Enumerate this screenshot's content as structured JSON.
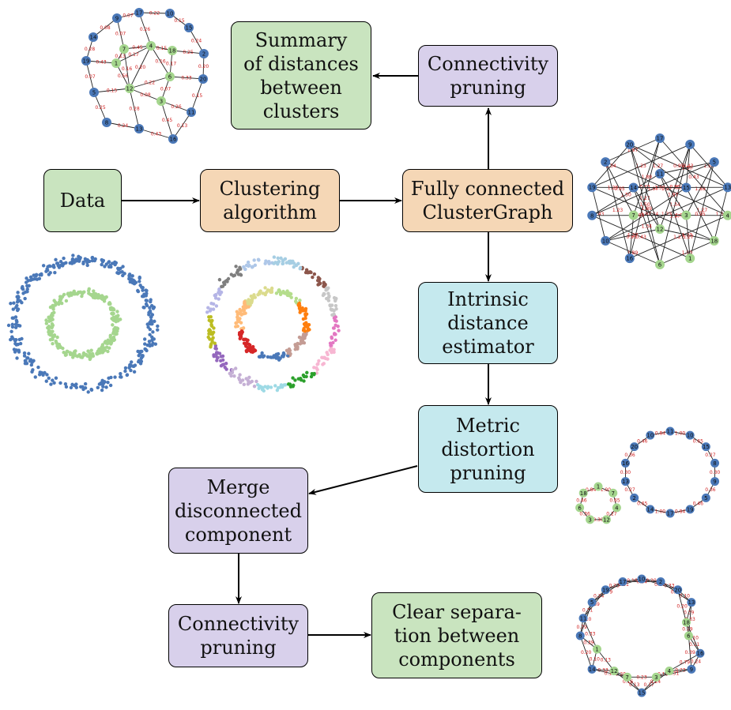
{
  "boxes": {
    "data": "Data",
    "clustering": "Clustering\nalgorithm",
    "fully_connected": "Fully connected\nClusterGraph",
    "connectivity_top": "Connectivity\npruning",
    "summary": "Summary\nof distances\nbetween\nclusters",
    "intrinsic": "Intrinsic\ndistance\nestimator",
    "metric": "Metric\ndistortion\npruning",
    "merge": "Merge\ndisconnected\ncomponent",
    "connectivity_bottom": "Connectivity\npruning",
    "clear": "Clear separa-\ntion between\ncomponents"
  },
  "colors": {
    "green_box": "#c9e4bf",
    "orange_box": "#f5d7b6",
    "purple_box": "#d8d0eb",
    "cyan_box": "#c5e9ee",
    "node_blue": "#4a78b8",
    "node_green": "#a5d68e",
    "edge_label_red": "#d02020",
    "outer_ring_points": "#4a78b8",
    "inner_ring_points": "#a5d68e"
  },
  "graph_top_left": {
    "nodes": [
      {
        "id": "17",
        "c": "b"
      },
      {
        "id": "10",
        "c": "b"
      },
      {
        "id": "9",
        "c": "b"
      },
      {
        "id": "15",
        "c": "b"
      },
      {
        "id": "14",
        "c": "b"
      },
      {
        "id": "7",
        "c": "g"
      },
      {
        "id": "4",
        "c": "g"
      },
      {
        "id": "18",
        "c": "g"
      },
      {
        "id": "2",
        "c": "b"
      },
      {
        "id": "19",
        "c": "b"
      },
      {
        "id": "1",
        "c": "g"
      },
      {
        "id": "20",
        "c": "b"
      },
      {
        "id": "6",
        "c": "g"
      },
      {
        "id": "5",
        "c": "b"
      },
      {
        "id": "12",
        "c": "g"
      },
      {
        "id": "3",
        "c": "g"
      },
      {
        "id": "11",
        "c": "b"
      },
      {
        "id": "8",
        "c": "b"
      },
      {
        "id": "13",
        "c": "b"
      },
      {
        "id": "16",
        "c": "b"
      }
    ],
    "edge_labels": [
      "0.22",
      "0.07",
      "0.15",
      "0.08",
      "0.07",
      "0.26",
      "0.15",
      "0.25",
      "0.24",
      "0.28",
      "0.43",
      "0.13",
      "0.45",
      "0.16",
      "0.17",
      "0.20",
      "0.33",
      "0.56"
    ]
  },
  "graph_right_full": {
    "nodes": [
      {
        "id": "17",
        "c": "b"
      },
      {
        "id": "9",
        "c": "b"
      },
      {
        "id": "5",
        "c": "b"
      },
      {
        "id": "13",
        "c": "b"
      },
      {
        "id": "4",
        "c": "g"
      },
      {
        "id": "18",
        "c": "g"
      },
      {
        "id": "1",
        "c": "g"
      },
      {
        "id": "6",
        "c": "g"
      },
      {
        "id": "16",
        "c": "b"
      },
      {
        "id": "10",
        "c": "b"
      },
      {
        "id": "8",
        "c": "b"
      },
      {
        "id": "19",
        "c": "b"
      },
      {
        "id": "2",
        "c": "b"
      },
      {
        "id": "20",
        "c": "b"
      },
      {
        "id": "3",
        "c": "g"
      },
      {
        "id": "12",
        "c": "g"
      },
      {
        "id": "7",
        "c": "g"
      },
      {
        "id": "14",
        "c": "b"
      },
      {
        "id": "11",
        "c": "b"
      },
      {
        "id": "15",
        "c": "b"
      }
    ],
    "edge_labels": [
      "0.43",
      "1.27",
      "1.97",
      "1.89",
      "1.50",
      "1.34",
      "1.23",
      "0.95"
    ]
  },
  "graph_right_split": {
    "outer_nodes": [
      "11",
      "10",
      "15",
      "8",
      "9",
      "5",
      "19",
      "17",
      "14",
      "2",
      "13",
      "16",
      "20",
      "10"
    ],
    "inner_nodes": [
      "1",
      "7",
      "4",
      "12",
      "3",
      "6",
      "18"
    ],
    "edge_labels": [
      "1.00",
      "0.65",
      "0.27",
      "0.30",
      "0.36",
      "0.46",
      "0.84"
    ]
  },
  "graph_bottom_right": {
    "nodes": [
      {
        "id": "10",
        "c": "b"
      },
      {
        "id": "2",
        "c": "b"
      },
      {
        "id": "20",
        "c": "b"
      },
      {
        "id": "13",
        "c": "b"
      },
      {
        "id": "18",
        "c": "g"
      },
      {
        "id": "6",
        "c": "g"
      },
      {
        "id": "16",
        "c": "b"
      },
      {
        "id": "9",
        "c": "b"
      },
      {
        "id": "4",
        "c": "g"
      },
      {
        "id": "3",
        "c": "g"
      },
      {
        "id": "15",
        "c": "b"
      },
      {
        "id": "7",
        "c": "g"
      },
      {
        "id": "12",
        "c": "g"
      },
      {
        "id": "14",
        "c": "b"
      },
      {
        "id": "1",
        "c": "g"
      },
      {
        "id": "8",
        "c": "b"
      },
      {
        "id": "11",
        "c": "b"
      },
      {
        "id": "5",
        "c": "b"
      },
      {
        "id": "19",
        "c": "b"
      },
      {
        "id": "17",
        "c": "b"
      }
    ],
    "edge_labels": [
      "0.20",
      "0.33",
      "0.10",
      "0.39",
      "0.79",
      "0.31",
      "0.24",
      "0.23",
      "0.16",
      "0.17",
      "0.13"
    ]
  }
}
